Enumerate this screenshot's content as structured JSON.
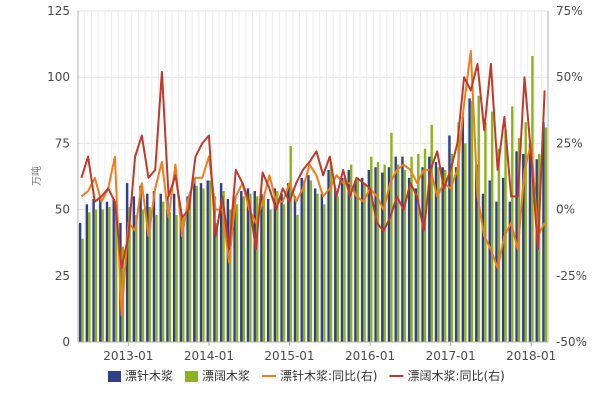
{
  "chart_data": {
    "type": "bar",
    "title": "",
    "xlabel": "",
    "ylabel": "万吨",
    "x_ticks": [
      "2013-01",
      "2014-01",
      "2015-01",
      "2016-01",
      "2017-01",
      "2018-01"
    ],
    "ylim_left": [
      0,
      125
    ],
    "yticks_left": [
      "0",
      "25",
      "50",
      "75",
      "100",
      "125"
    ],
    "ylim_right": [
      -50,
      75
    ],
    "yticks_right": [
      "-50%",
      "-25%",
      "0%",
      "25%",
      "50%",
      "75%"
    ],
    "grid": true,
    "legend_position": "bottom",
    "months": [
      "2012-06",
      "2012-07",
      "2012-08",
      "2012-09",
      "2012-10",
      "2012-11",
      "2012-12",
      "2013-01",
      "2013-02",
      "2013-03",
      "2013-04",
      "2013-05",
      "2013-06",
      "2013-07",
      "2013-08",
      "2013-09",
      "2013-10",
      "2013-11",
      "2013-12",
      "2014-01",
      "2014-02",
      "2014-03",
      "2014-04",
      "2014-05",
      "2014-06",
      "2014-07",
      "2014-08",
      "2014-09",
      "2014-10",
      "2014-11",
      "2014-12",
      "2015-01",
      "2015-02",
      "2015-03",
      "2015-04",
      "2015-05",
      "2015-06",
      "2015-07",
      "2015-08",
      "2015-09",
      "2015-10",
      "2015-11",
      "2015-12",
      "2016-01",
      "2016-02",
      "2016-03",
      "2016-04",
      "2016-05",
      "2016-06",
      "2016-07",
      "2016-08",
      "2016-09",
      "2016-10",
      "2016-11",
      "2016-12",
      "2017-01",
      "2017-02",
      "2017-03",
      "2017-04",
      "2017-05",
      "2017-06",
      "2017-07",
      "2017-08",
      "2017-09",
      "2017-10",
      "2017-11",
      "2017-12",
      "2018-01",
      "2018-02",
      "2018-03"
    ],
    "series": [
      {
        "name": "漂针木浆",
        "axis": "left",
        "render": "bar",
        "color": "#2e3f8f",
        "values": [
          45,
          52,
          54,
          55,
          53,
          54,
          45,
          60,
          55,
          59,
          56,
          57,
          56,
          55,
          56,
          50,
          55,
          62,
          60,
          61,
          55,
          60,
          54,
          55,
          57,
          58,
          57,
          56,
          54,
          58,
          56,
          60,
          55,
          62,
          63,
          58,
          56,
          65,
          58,
          62,
          65,
          61,
          62,
          65,
          66,
          64,
          66,
          70,
          70,
          62,
          58,
          66,
          70,
          68,
          66,
          78,
          66,
          85,
          92,
          67,
          56,
          61,
          53,
          62,
          53,
          72,
          71,
          75,
          69,
          83
        ]
      },
      {
        "name": "漂阔木浆",
        "axis": "left",
        "render": "bar",
        "color": "#8fb21a",
        "values": [
          39,
          49,
          50,
          50,
          51,
          50,
          36,
          51,
          48,
          50,
          51,
          48,
          53,
          49,
          48,
          47,
          55,
          59,
          58,
          61,
          45,
          57,
          50,
          52,
          55,
          56,
          55,
          55,
          50,
          57,
          52,
          74,
          48,
          61,
          61,
          56,
          52,
          68,
          55,
          62,
          67,
          62,
          60,
          70,
          68,
          67,
          79,
          67,
          65,
          70,
          71,
          73,
          82,
          66,
          65,
          71,
          83,
          75,
          91,
          93,
          83,
          87,
          73,
          80,
          89,
          77,
          83,
          108,
          71,
          81
        ]
      },
      {
        "name": "漂针木浆:同比(右)",
        "axis": "right",
        "render": "line",
        "color": "#f07d1c",
        "values": [
          5,
          7,
          12,
          3,
          8,
          20,
          -40,
          -5,
          -8,
          10,
          -10,
          8,
          18,
          -3,
          17,
          -10,
          5,
          12,
          12,
          20,
          0,
          0,
          -20,
          5,
          10,
          0,
          -5,
          3,
          13,
          3,
          3,
          10,
          3,
          8,
          17,
          13,
          5,
          8,
          13,
          10,
          10,
          5,
          3,
          8,
          5,
          0,
          10,
          15,
          17,
          15,
          10,
          15,
          15,
          5,
          10,
          8,
          15,
          40,
          60,
          5,
          -10,
          -15,
          -22,
          -10,
          -5,
          -15,
          15,
          25,
          -10,
          -5
        ]
      },
      {
        "name": "漂阔木浆:同比(右)",
        "axis": "right",
        "render": "line",
        "color": "#c0392b",
        "values": [
          12,
          20,
          3,
          5,
          8,
          3,
          -22,
          -10,
          20,
          28,
          12,
          15,
          52,
          5,
          13,
          -3,
          0,
          20,
          25,
          28,
          -10,
          5,
          -15,
          15,
          10,
          3,
          -15,
          14,
          8,
          0,
          8,
          3,
          10,
          15,
          18,
          22,
          13,
          20,
          5,
          15,
          5,
          12,
          10,
          8,
          -5,
          -8,
          -3,
          5,
          0,
          10,
          5,
          -8,
          15,
          22,
          8,
          15,
          25,
          50,
          45,
          55,
          30,
          55,
          15,
          35,
          5,
          5,
          50,
          20,
          -15,
          45
        ]
      }
    ]
  }
}
